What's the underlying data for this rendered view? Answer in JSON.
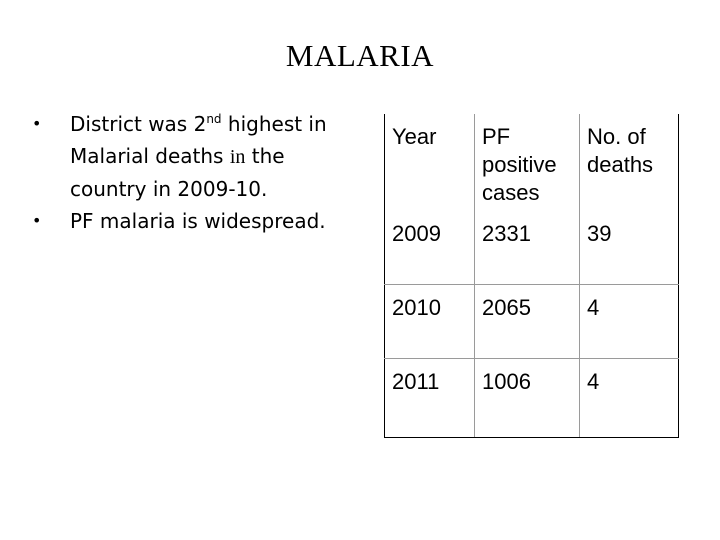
{
  "title": "MALARIA",
  "bullets": [
    {
      "pre": "District was 2",
      "sup": "nd",
      "mid": " highest in Malarial deaths ",
      "serif": "in",
      "post": " the country in 2009-10."
    },
    {
      "text": "PF malaria is widespread."
    }
  ],
  "table": {
    "headers": [
      "Year",
      "PF positive cases",
      "No. of deaths"
    ],
    "rows": [
      [
        "2009",
        "2331",
        "39"
      ],
      [
        "2010",
        "2065",
        "4"
      ],
      [
        "2011",
        "1006",
        "4"
      ]
    ]
  }
}
